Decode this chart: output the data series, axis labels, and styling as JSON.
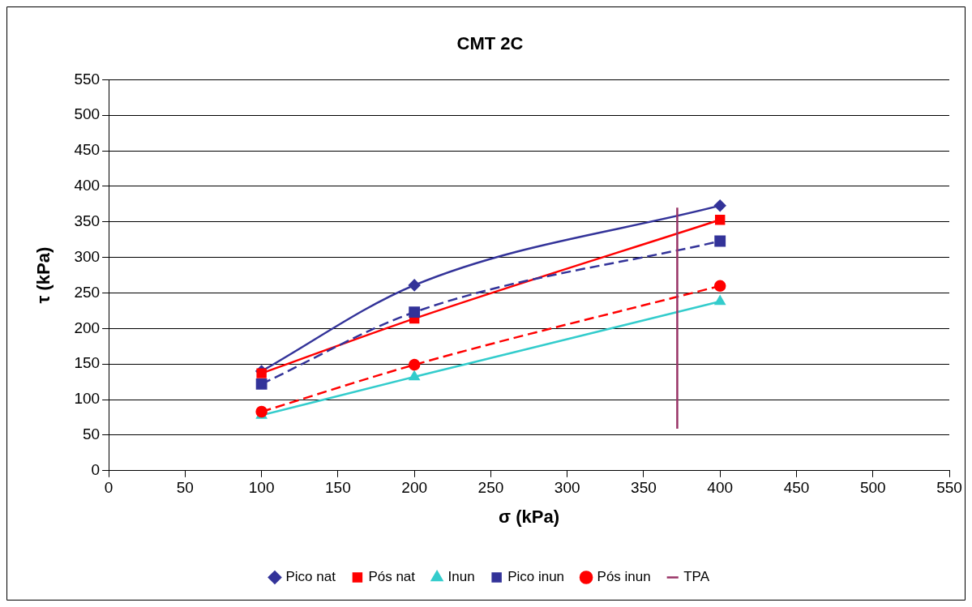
{
  "chart_data": {
    "type": "line",
    "title": "CMT 2C",
    "xlabel": "σ (kPa)",
    "ylabel": "τ (kPa)",
    "x": [
      100,
      200,
      400
    ],
    "xlim": [
      0,
      550
    ],
    "xticks": [
      0,
      50,
      100,
      150,
      200,
      250,
      300,
      350,
      400,
      450,
      500,
      550
    ],
    "ylim": [
      0,
      550
    ],
    "yticks": [
      0,
      50,
      100,
      150,
      200,
      250,
      300,
      350,
      400,
      450,
      500,
      550
    ],
    "grid": "y",
    "legend": "bottom",
    "series": [
      {
        "name": "Pico nat",
        "color": "#333399",
        "values": [
          140,
          261,
          373
        ],
        "marker": "diamond",
        "line_style": "solid"
      },
      {
        "name": "Pós nat",
        "color": "#ff0000",
        "values": [
          137,
          214,
          353
        ],
        "marker": "square",
        "line_style": "solid"
      },
      {
        "name": "Inun",
        "color": "#33cccc",
        "values": [
          78,
          132,
          238
        ],
        "marker": "triangle",
        "line_style": "solid"
      },
      {
        "name": "Pico inun",
        "color": "#333399",
        "values": [
          122,
          223,
          323
        ],
        "marker": "square",
        "line_style": "dashed"
      },
      {
        "name": "Pós inun",
        "color": "#ff0000",
        "values": [
          83,
          149,
          260
        ],
        "marker": "circle",
        "line_style": "dashed"
      },
      {
        "name": "TPA",
        "color": "#993366",
        "x": [
          372,
          372
        ],
        "values": [
          59,
          370
        ],
        "marker": "none",
        "line_style": "solid"
      }
    ]
  }
}
